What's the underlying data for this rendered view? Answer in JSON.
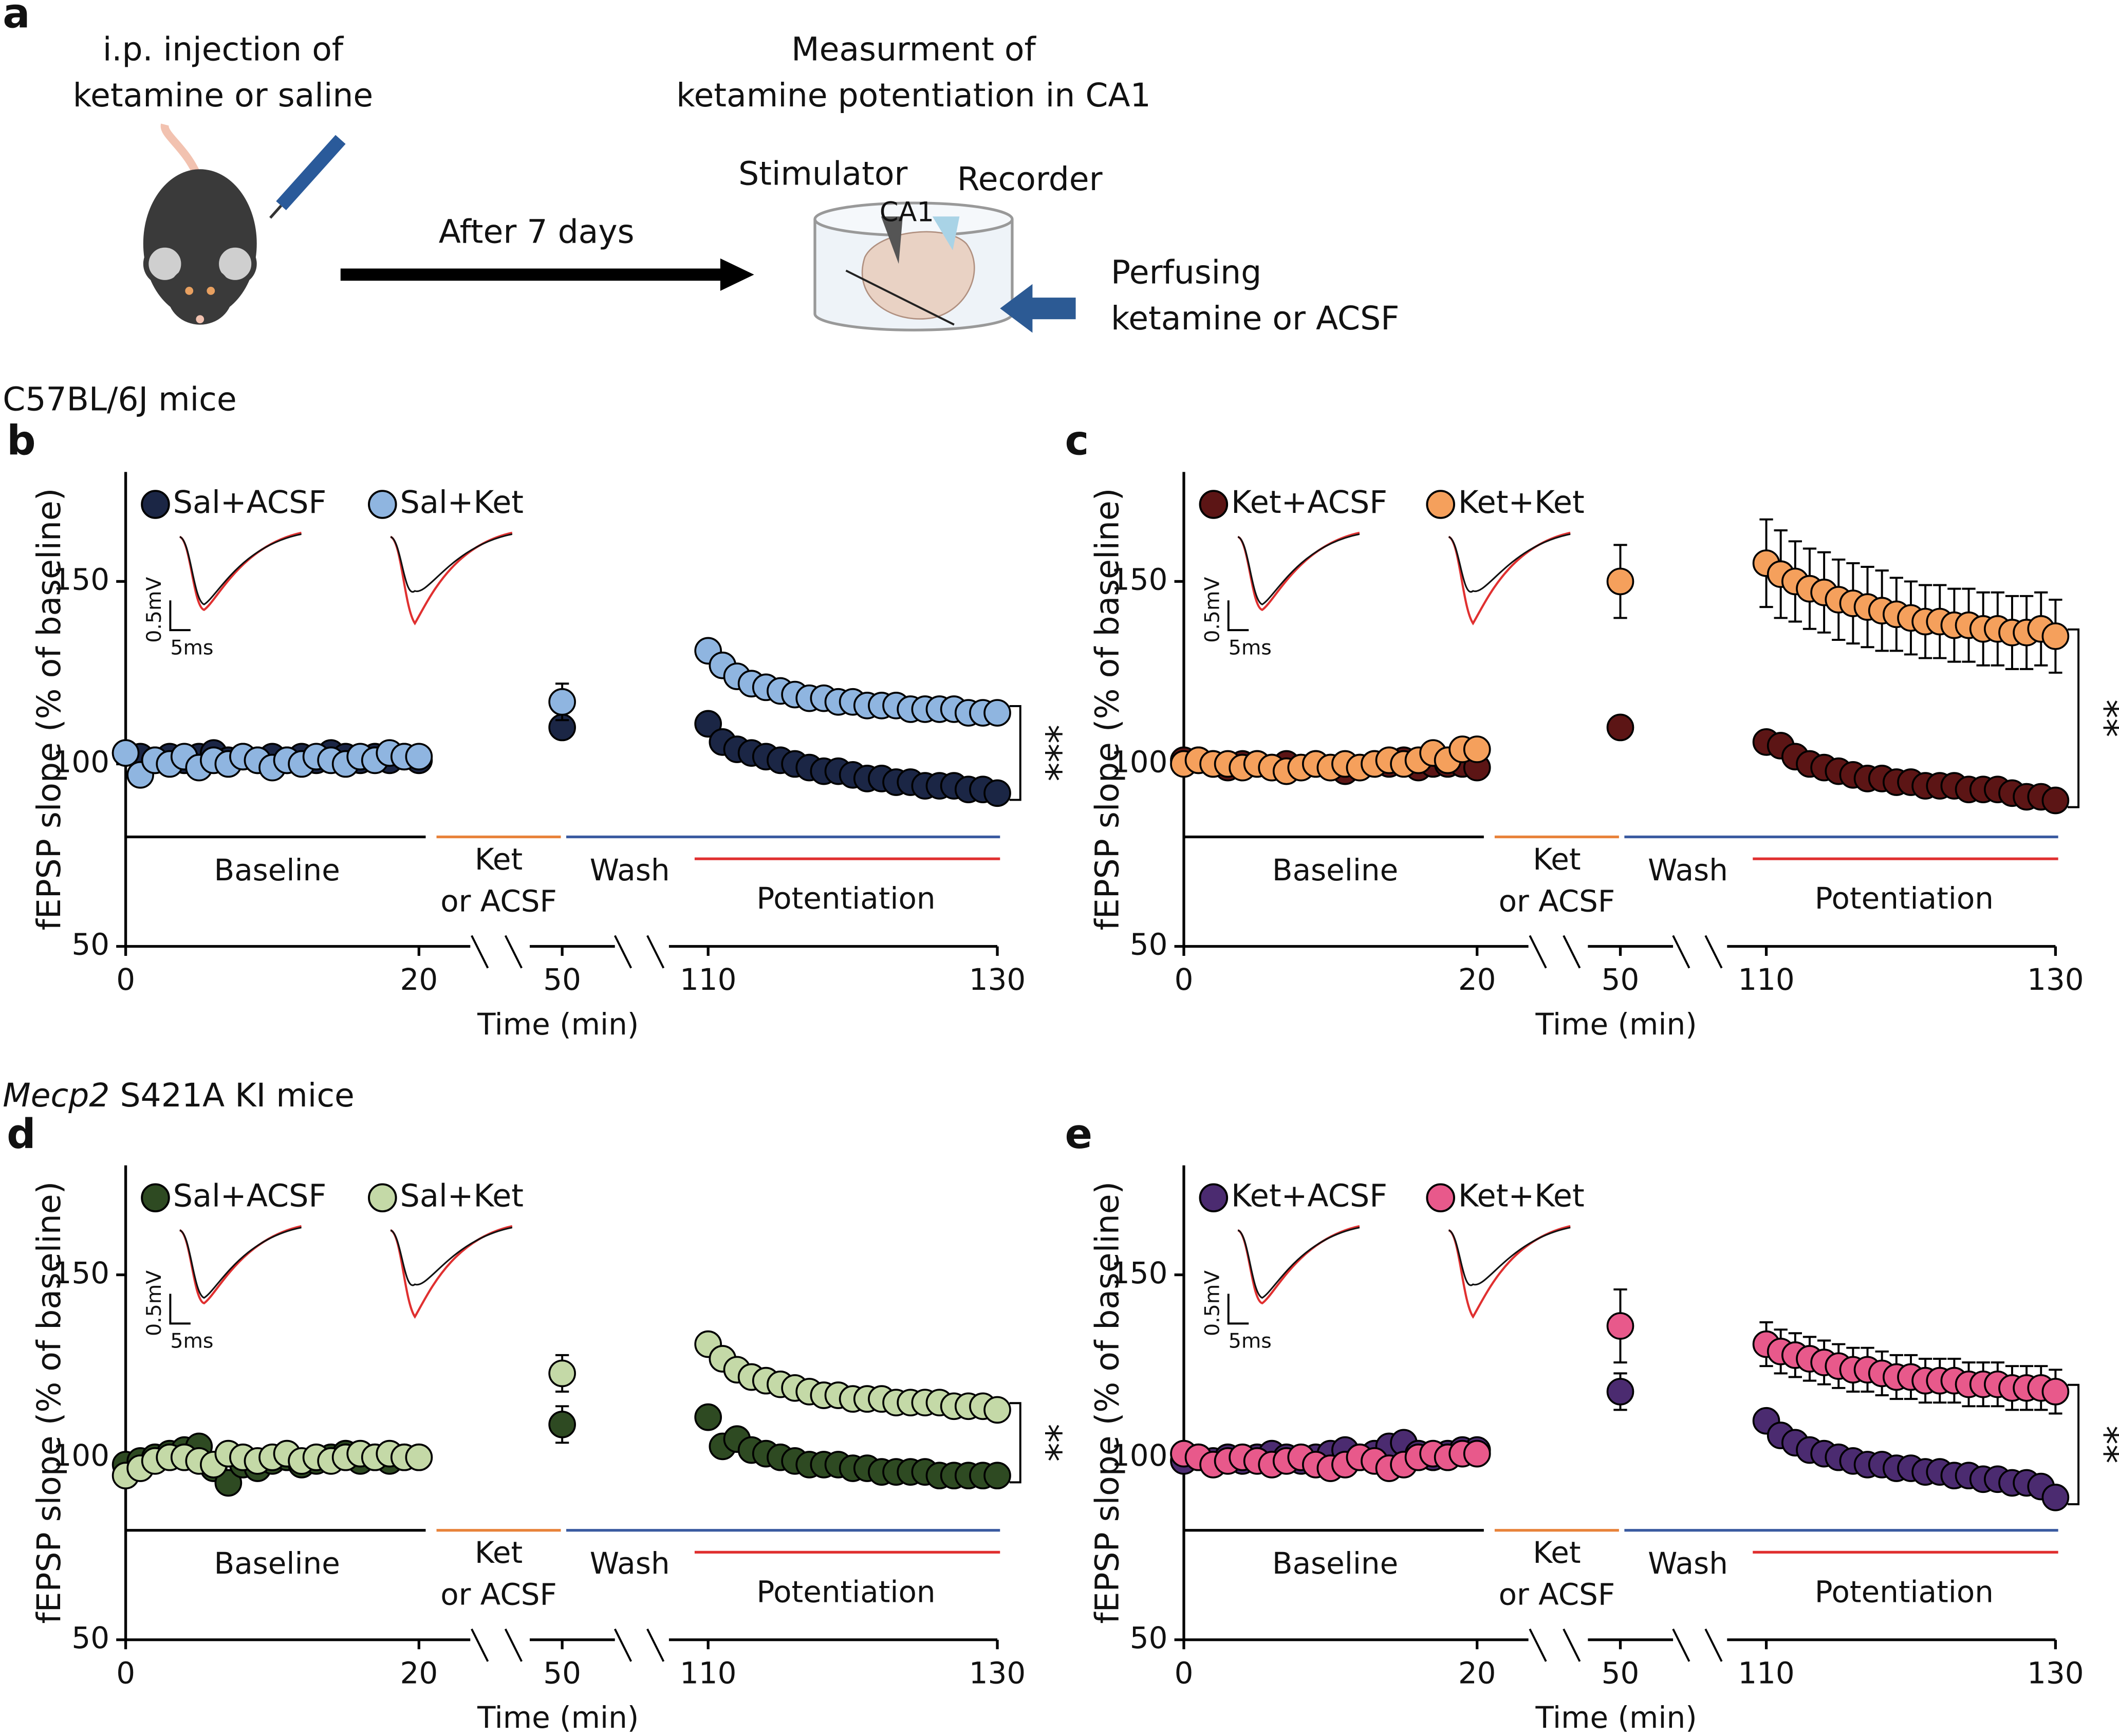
{
  "panel_a": {
    "label": "a",
    "injection": [
      "i.p. injection of",
      "ketamine or saline"
    ],
    "arrow_label": "After 7 days",
    "measurement": [
      "Measurment of",
      "ketamine potentiation in CA1"
    ],
    "stimulator": "Stimulator",
    "recorder": "Recorder",
    "region": "CA1",
    "perfusion": [
      "Perfusing",
      "ketamine or ACSF"
    ]
  },
  "sections": {
    "strain_1": "C57BL/6J mice",
    "strain_2_gene": "Mecp2",
    "strain_2_rest": "S421A KI mice"
  },
  "chart_data": [
    {
      "type": "scatter",
      "panel": "b",
      "xlabel": "Time (min)",
      "ylabel": "fEPSP slope (% of baseline)",
      "xlim": [
        0,
        130
      ],
      "xticks": [
        0,
        20,
        50,
        110,
        130
      ],
      "ylim": [
        50,
        180
      ],
      "yticks": [
        50,
        100,
        150
      ],
      "x": [
        0,
        1,
        2,
        3,
        4,
        5,
        6,
        7,
        8,
        9,
        10,
        11,
        12,
        13,
        14,
        15,
        16,
        17,
        18,
        19,
        20,
        50,
        110,
        111,
        112,
        113,
        114,
        115,
        116,
        117,
        118,
        119,
        120,
        121,
        122,
        123,
        124,
        125,
        126,
        127,
        128,
        129,
        130
      ],
      "annotations": {
        "baseline": "Baseline",
        "drug": [
          "Ket",
          "or ACSF"
        ],
        "wash": "Wash",
        "potentiation": "Potentiation",
        "significance": "***",
        "scale_v": "0.5mV",
        "scale_t": "5ms"
      },
      "series": [
        {
          "name": "Sal+ACSF",
          "color": "#1b2645",
          "values": [
            103,
            102,
            101,
            102,
            101,
            102,
            103,
            101,
            102,
            101,
            102,
            101,
            102,
            101,
            103,
            102,
            101,
            102,
            101,
            102,
            101,
            110,
            111,
            106,
            104,
            103,
            102,
            101,
            100,
            99,
            98,
            98,
            97,
            96,
            96,
            95,
            95,
            94,
            94,
            94,
            93,
            93,
            92
          ],
          "errors": [
            null,
            null,
            null,
            null,
            null,
            null,
            null,
            null,
            null,
            null,
            null,
            null,
            null,
            null,
            null,
            null,
            null,
            null,
            null,
            null,
            null,
            2,
            null,
            null,
            null,
            null,
            null,
            null,
            null,
            null,
            null,
            null,
            null,
            null,
            null,
            null,
            null,
            null,
            null,
            null,
            null,
            null,
            null
          ]
        },
        {
          "name": "Sal+Ket",
          "color": "#8fb5e0",
          "values": [
            103,
            97,
            101,
            100,
            102,
            99,
            101,
            100,
            102,
            101,
            99,
            101,
            100,
            102,
            101,
            100,
            102,
            101,
            103,
            102,
            102,
            117,
            131,
            127,
            124,
            122,
            121,
            120,
            119,
            118,
            118,
            117,
            117,
            116,
            116,
            116,
            115,
            115,
            115,
            115,
            114,
            114,
            114
          ],
          "errors": [
            null,
            null,
            null,
            null,
            null,
            null,
            null,
            null,
            null,
            null,
            null,
            null,
            null,
            null,
            null,
            null,
            null,
            null,
            null,
            null,
            null,
            5,
            null,
            null,
            null,
            null,
            null,
            null,
            null,
            null,
            null,
            null,
            null,
            null,
            null,
            null,
            null,
            null,
            null,
            null,
            null,
            null,
            null
          ]
        }
      ]
    },
    {
      "type": "scatter",
      "panel": "c",
      "xlabel": "Time (min)",
      "ylabel": "fEPSP slope (% of baseline)",
      "xlim": [
        0,
        130
      ],
      "xticks": [
        0,
        20,
        50,
        110,
        130
      ],
      "ylim": [
        50,
        180
      ],
      "yticks": [
        50,
        100,
        150
      ],
      "x": [
        0,
        1,
        2,
        3,
        4,
        5,
        6,
        7,
        8,
        9,
        10,
        11,
        12,
        13,
        14,
        15,
        16,
        17,
        18,
        19,
        20,
        50,
        110,
        111,
        112,
        113,
        114,
        115,
        116,
        117,
        118,
        119,
        120,
        121,
        122,
        123,
        124,
        125,
        126,
        127,
        128,
        129,
        130
      ],
      "annotations": {
        "baseline": "Baseline",
        "drug": [
          "Ket",
          "or ACSF"
        ],
        "wash": "Wash",
        "potentiation": "Potentiation",
        "significance": "**",
        "scale_v": "0.5mV",
        "scale_t": "5ms"
      },
      "series": [
        {
          "name": "Ket+ACSF",
          "color": "#5c1515",
          "values": [
            101,
            101,
            100,
            99,
            100,
            100,
            99,
            100,
            99,
            100,
            99,
            98,
            99,
            100,
            100,
            101,
            99,
            100,
            100,
            100,
            99,
            110,
            106,
            105,
            102,
            100,
            99,
            98,
            97,
            96,
            96,
            95,
            95,
            94,
            94,
            94,
            93,
            93,
            93,
            92,
            91,
            91,
            90
          ]
        },
        {
          "name": "Ket+Ket",
          "color": "#f5a05c",
          "values": [
            100,
            101,
            100,
            100,
            99,
            100,
            99,
            98,
            99,
            100,
            99,
            100,
            99,
            100,
            101,
            100,
            101,
            103,
            101,
            104,
            104,
            150,
            155,
            152,
            150,
            148,
            147,
            145,
            144,
            143,
            142,
            141,
            140,
            139,
            139,
            138,
            138,
            137,
            137,
            136,
            136,
            137,
            135
          ],
          "errors": [
            null,
            null,
            null,
            null,
            null,
            null,
            null,
            null,
            null,
            null,
            null,
            null,
            null,
            null,
            null,
            null,
            null,
            null,
            null,
            null,
            null,
            10,
            12,
            12,
            11,
            11,
            11,
            11,
            11,
            11,
            11,
            10,
            10,
            10,
            10,
            10,
            10,
            10,
            10,
            10,
            10,
            10,
            10
          ]
        }
      ]
    },
    {
      "type": "scatter",
      "panel": "d",
      "xlabel": "Time (min)",
      "ylabel": "fEPSP slope (% of baseline)",
      "xlim": [
        0,
        130
      ],
      "xticks": [
        0,
        20,
        50,
        110,
        130
      ],
      "ylim": [
        50,
        180
      ],
      "yticks": [
        50,
        100,
        150
      ],
      "x": [
        0,
        1,
        2,
        3,
        4,
        5,
        6,
        7,
        8,
        9,
        10,
        11,
        12,
        13,
        14,
        15,
        16,
        17,
        18,
        19,
        20,
        50,
        110,
        111,
        112,
        113,
        114,
        115,
        116,
        117,
        118,
        119,
        120,
        121,
        122,
        123,
        124,
        125,
        126,
        127,
        128,
        129,
        130
      ],
      "annotations": {
        "baseline": "Baseline",
        "drug": [
          "Ket",
          "or ACSF"
        ],
        "wash": "Wash",
        "potentiation": "Potentiation",
        "significance": "**",
        "scale_v": "0.5mV",
        "scale_t": "5ms"
      },
      "series": [
        {
          "name": "Sal+ACSF",
          "color": "#2e4a22",
          "values": [
            98,
            99,
            100,
            101,
            102,
            103,
            97,
            93,
            98,
            97,
            99,
            100,
            98,
            99,
            100,
            101,
            99,
            100,
            99,
            100,
            100,
            109,
            111,
            103,
            105,
            102,
            101,
            100,
            99,
            98,
            98,
            98,
            97,
            97,
            96,
            96,
            96,
            96,
            95,
            95,
            95,
            95,
            95
          ],
          "errors": [
            null,
            null,
            null,
            null,
            null,
            null,
            null,
            null,
            null,
            null,
            null,
            null,
            null,
            null,
            null,
            null,
            null,
            null,
            null,
            null,
            null,
            5,
            3,
            3,
            3,
            3,
            3,
            3,
            3,
            3,
            3,
            3,
            3,
            3,
            3,
            3,
            3,
            3,
            3,
            3,
            3,
            3,
            3
          ]
        },
        {
          "name": "Sal+Ket",
          "color": "#c4d9a7",
          "values": [
            95,
            97,
            99,
            100,
            100,
            99,
            98,
            101,
            100,
            99,
            100,
            101,
            99,
            100,
            99,
            100,
            101,
            100,
            101,
            100,
            100,
            123,
            131,
            127,
            124,
            122,
            121,
            120,
            119,
            118,
            117,
            117,
            116,
            116,
            116,
            115,
            115,
            115,
            115,
            114,
            114,
            114,
            113
          ],
          "errors": [
            null,
            null,
            null,
            null,
            null,
            null,
            null,
            null,
            null,
            null,
            null,
            null,
            null,
            null,
            null,
            null,
            null,
            null,
            null,
            null,
            null,
            5,
            3,
            3,
            3,
            3,
            3,
            3,
            3,
            3,
            3,
            3,
            3,
            3,
            3,
            3,
            3,
            3,
            3,
            3,
            3,
            3,
            3
          ]
        }
      ]
    },
    {
      "type": "scatter",
      "panel": "e",
      "xlabel": "Time (min)",
      "ylabel": "fEPSP slope (% of baseline)",
      "xlim": [
        0,
        130
      ],
      "xticks": [
        0,
        20,
        50,
        110,
        130
      ],
      "ylim": [
        50,
        180
      ],
      "yticks": [
        50,
        100,
        150
      ],
      "x": [
        0,
        1,
        2,
        3,
        4,
        5,
        6,
        7,
        8,
        9,
        10,
        11,
        12,
        13,
        14,
        15,
        16,
        17,
        18,
        19,
        20,
        50,
        110,
        111,
        112,
        113,
        114,
        115,
        116,
        117,
        118,
        119,
        120,
        121,
        122,
        123,
        124,
        125,
        126,
        127,
        128,
        129,
        130
      ],
      "annotations": {
        "baseline": "Baseline",
        "drug": [
          "Ket",
          "or ACSF"
        ],
        "wash": "Wash",
        "potentiation": "Potentiation",
        "significance": "**",
        "scale_v": "0.5mV",
        "scale_t": "5ms"
      },
      "series": [
        {
          "name": "Ket+ACSF",
          "color": "#4b2b70",
          "values": [
            99,
            100,
            99,
            100,
            99,
            100,
            101,
            100,
            99,
            100,
            101,
            102,
            100,
            101,
            103,
            104,
            101,
            100,
            101,
            102,
            102,
            118,
            110,
            106,
            104,
            102,
            101,
            100,
            99,
            98,
            98,
            97,
            97,
            96,
            96,
            95,
            95,
            94,
            94,
            93,
            93,
            92,
            89
          ],
          "errors": [
            null,
            null,
            null,
            null,
            null,
            null,
            null,
            null,
            null,
            null,
            null,
            null,
            null,
            null,
            null,
            null,
            null,
            null,
            null,
            null,
            null,
            5,
            3,
            3,
            3,
            3,
            3,
            3,
            3,
            3,
            3,
            3,
            3,
            3,
            3,
            3,
            3,
            3,
            3,
            3,
            3,
            3,
            3
          ]
        },
        {
          "name": "Ket+Ket",
          "color": "#e8598b",
          "values": [
            101,
            100,
            98,
            99,
            100,
            99,
            98,
            99,
            100,
            98,
            97,
            98,
            100,
            99,
            97,
            98,
            100,
            101,
            100,
            101,
            101,
            136,
            131,
            129,
            128,
            127,
            126,
            125,
            124,
            124,
            123,
            122,
            122,
            121,
            121,
            121,
            120,
            120,
            120,
            119,
            119,
            119,
            118
          ],
          "errors": [
            null,
            null,
            null,
            null,
            null,
            null,
            null,
            null,
            null,
            null,
            null,
            null,
            null,
            null,
            null,
            null,
            null,
            null,
            null,
            null,
            null,
            10,
            6,
            6,
            6,
            6,
            6,
            6,
            6,
            6,
            6,
            6,
            6,
            6,
            6,
            6,
            6,
            6,
            6,
            6,
            6,
            6,
            6
          ]
        }
      ]
    }
  ]
}
